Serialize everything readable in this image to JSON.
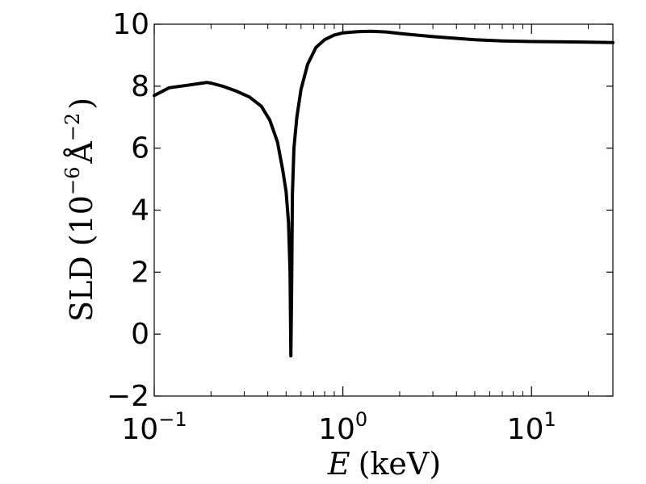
{
  "chart_data": {
    "type": "line",
    "xscale": "log",
    "xlim": [
      0.1,
      27
    ],
    "ylim": [
      -2,
      10
    ],
    "grid": false,
    "title": "",
    "xlabel_var": "E",
    "xlabel_unit": "(keV)",
    "ylabel": {
      "prefix": "SLD (10",
      "exp1": "−6",
      "angstrom": "Å",
      "exp2": "−2",
      "suffix": ")"
    },
    "yticks": [
      -2,
      0,
      2,
      4,
      6,
      8,
      10
    ],
    "ytick_labels": [
      "−2",
      "0",
      "2",
      "4",
      "6",
      "8",
      "10"
    ],
    "xticks": [
      0.1,
      1,
      10
    ],
    "xtick_labels": [
      {
        "base": "10",
        "exp": "−1"
      },
      {
        "base": "10",
        "exp": "0"
      },
      {
        "base": "10",
        "exp": "1"
      }
    ],
    "series": [
      {
        "color": "#000000",
        "x": [
          0.1,
          0.12,
          0.15,
          0.18,
          0.19,
          0.2,
          0.23,
          0.27,
          0.32,
          0.37,
          0.41,
          0.45,
          0.48,
          0.5,
          0.515,
          0.525,
          0.53,
          0.535,
          0.54,
          0.55,
          0.57,
          0.6,
          0.65,
          0.72,
          0.8,
          0.9,
          1.0,
          1.2,
          1.4,
          1.7,
          2.0,
          3.0,
          5.0,
          7.0,
          10.0,
          15.0,
          20.0,
          27.0
        ],
        "y": [
          7.7,
          7.95,
          8.03,
          8.1,
          8.12,
          8.1,
          8.0,
          7.85,
          7.65,
          7.35,
          6.9,
          6.2,
          5.3,
          4.6,
          3.6,
          2.0,
          -0.7,
          1.5,
          4.5,
          6.0,
          7.0,
          7.9,
          8.7,
          9.25,
          9.5,
          9.65,
          9.72,
          9.76,
          9.77,
          9.75,
          9.7,
          9.6,
          9.5,
          9.46,
          9.44,
          9.43,
          9.42,
          9.41
        ]
      }
    ]
  }
}
